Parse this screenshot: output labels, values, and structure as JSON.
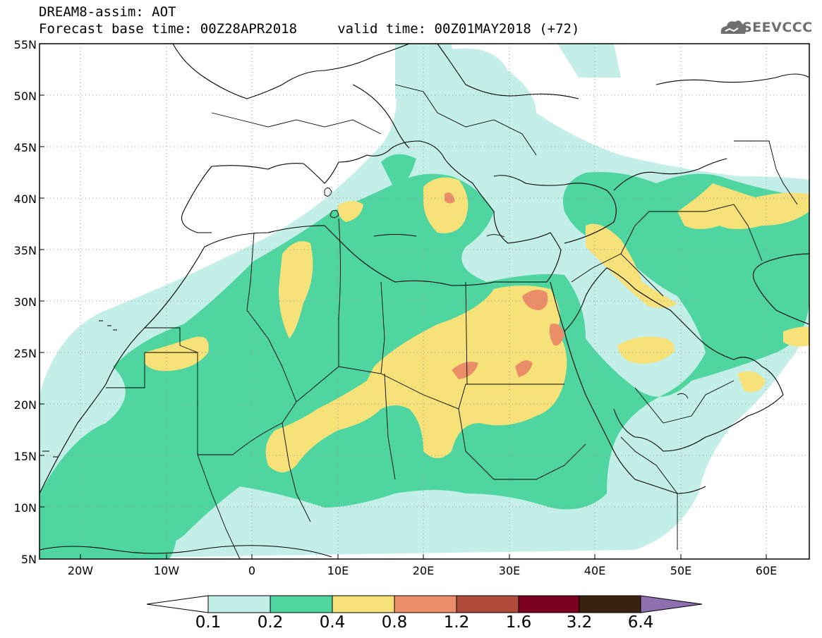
{
  "header": {
    "line1": "DREAM8-assim: AOT",
    "line2": "Forecast base time: 00Z28APR2018     valid time: 00Z01MAY2018 (+72)",
    "logo_text": "SEEVCCC"
  },
  "map": {
    "projection": "lat-lon",
    "lon_range": [
      -25,
      65
    ],
    "lat_range": [
      5,
      55
    ],
    "lat_labels": [
      "55N",
      "50N",
      "45N",
      "40N",
      "35N",
      "30N",
      "25N",
      "20N",
      "15N",
      "10N",
      "5N"
    ],
    "lon_labels": [
      "20W",
      "10W",
      "0",
      "10E",
      "20E",
      "30E",
      "40E",
      "50E",
      "60E"
    ],
    "grid": "dotted"
  },
  "colorbar": {
    "levels": [
      "0.1",
      "0.2",
      "0.4",
      "0.8",
      "1.2",
      "1.6",
      "3.2",
      "6.4"
    ],
    "colors": [
      "#ffffff",
      "#c4efe8",
      "#4fd6a0",
      "#f7e27a",
      "#ea8e6a",
      "#b04a3a",
      "#7a0020",
      "#3b2210",
      "#8e6fb0"
    ]
  }
}
